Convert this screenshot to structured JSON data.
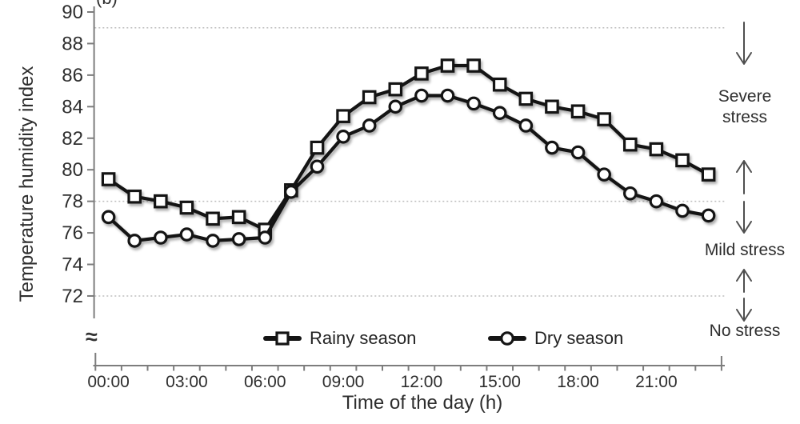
{
  "panel_label": "(b)",
  "colors": {
    "series_line": "#141414",
    "marker_fill": "#ffffff",
    "gridline": "#bdbdbd",
    "axis": "#7d7d7d",
    "text": "#2e2e2e",
    "arrow": "#4f4f4f"
  },
  "chart_data": {
    "type": "line",
    "title": "",
    "xlabel": "Time of the day (h)",
    "ylabel": "Temperature humidity index",
    "categories": [
      "00:00",
      "01:00",
      "02:00",
      "03:00",
      "04:00",
      "05:00",
      "06:00",
      "07:00",
      "08:00",
      "09:00",
      "10:00",
      "11:00",
      "12:00",
      "13:00",
      "14:00",
      "15:00",
      "16:00",
      "17:00",
      "18:00",
      "19:00",
      "20:00",
      "21:00",
      "22:00",
      "23:00"
    ],
    "x_tick_labels_shown": [
      "00:00",
      "03:00",
      "06:00",
      "09:00",
      "12:00",
      "15:00",
      "18:00",
      "21:00"
    ],
    "x_label_every": 3,
    "y_ticks": [
      90,
      88,
      86,
      84,
      82,
      80,
      78,
      76,
      74,
      72
    ],
    "ylim": [
      72,
      90
    ],
    "axis_break": "≈",
    "gridlines": [
      89,
      78,
      72
    ],
    "grid_style": "dotted-horizontal",
    "legend_position": "inside-bottom",
    "series": [
      {
        "name": "Rainy season",
        "marker": "square",
        "values": [
          79.4,
          78.3,
          78.0,
          77.6,
          76.9,
          77.0,
          76.2,
          78.7,
          81.4,
          83.4,
          84.6,
          85.1,
          86.1,
          86.6,
          86.6,
          85.4,
          84.5,
          84.0,
          83.7,
          83.2,
          81.6,
          81.3,
          80.6,
          79.7
        ]
      },
      {
        "name": "Dry season",
        "marker": "circle",
        "values": [
          77.0,
          75.5,
          75.7,
          75.9,
          75.5,
          75.6,
          75.7,
          78.6,
          80.2,
          82.1,
          82.8,
          84.0,
          84.7,
          84.7,
          84.2,
          83.6,
          82.8,
          81.4,
          81.1,
          79.7,
          78.5,
          78.0,
          77.4,
          77.1
        ]
      }
    ]
  },
  "stress_annotations": {
    "severe_label": "Severe stress",
    "mild_label": "Mild stress",
    "none_label": "No stress"
  }
}
